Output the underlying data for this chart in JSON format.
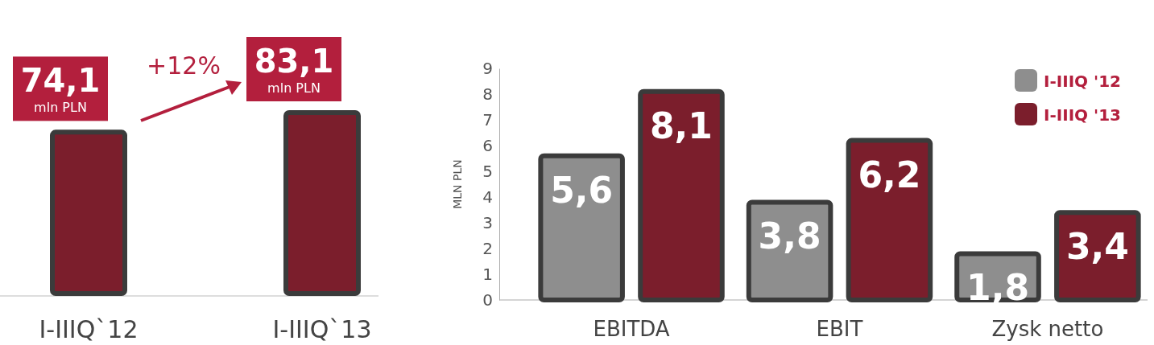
{
  "chart_data": [
    {
      "type": "bar",
      "categories": [
        "I-IIIQ`12",
        "I-IIIQ`13"
      ],
      "values": [
        74.1,
        83.1
      ],
      "color": "#7b1e2c",
      "value_labels": [
        "74,1 mln PLN",
        "83,1 mln PLN"
      ],
      "annotations": [
        "+12%"
      ]
    },
    {
      "type": "bar",
      "categories": [
        "EBITDA",
        "EBIT",
        "Zysk netto"
      ],
      "ylabel": "MLN PLN",
      "ylim": [
        0,
        9
      ],
      "yticks": [
        0,
        1,
        2,
        3,
        4,
        5,
        6,
        7,
        8,
        9
      ],
      "legend": "top right",
      "series": [
        {
          "name": "I-IIIQ '12",
          "color": "#8e8e8e",
          "values": [
            5.6,
            3.8,
            1.8
          ],
          "value_labels": [
            "5,6",
            "3,8",
            "1,8"
          ]
        },
        {
          "name": "I-IIIQ '13",
          "color": "#7b1e2c",
          "values": [
            8.1,
            6.2,
            3.4
          ],
          "value_labels": [
            "8,1",
            "6,2",
            "3,4"
          ]
        }
      ]
    }
  ]
}
